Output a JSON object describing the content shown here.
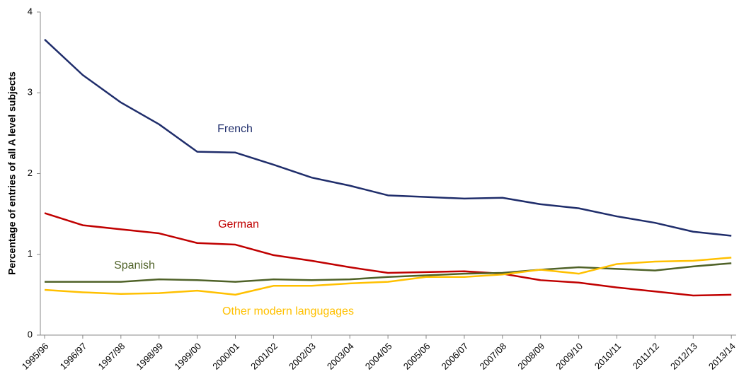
{
  "chart_data": {
    "type": "line",
    "y_label": "Percentage of entries of all A level subjects",
    "categories": [
      "1995/96",
      "1996/97",
      "1997/98",
      "1998/99",
      "1999/00",
      "2000/01",
      "2001/02",
      "2002/03",
      "2003/04",
      "2004/05",
      "2005/06",
      "2006/07",
      "2007/08",
      "2008/09",
      "2009/10",
      "2010/11",
      "2011/12",
      "2012/13",
      "2013/14"
    ],
    "series": [
      {
        "name": "French",
        "color": "#1f2d6b",
        "values": [
          3.66,
          3.22,
          2.88,
          2.61,
          2.27,
          2.26,
          2.11,
          1.95,
          1.85,
          1.73,
          1.71,
          1.69,
          1.7,
          1.62,
          1.57,
          1.47,
          1.39,
          1.28,
          1.23
        ]
      },
      {
        "name": "German",
        "color": "#c00000",
        "values": [
          1.51,
          1.36,
          1.31,
          1.26,
          1.14,
          1.12,
          0.99,
          0.92,
          0.84,
          0.77,
          0.78,
          0.79,
          0.76,
          0.68,
          0.65,
          0.59,
          0.54,
          0.49,
          0.5
        ]
      },
      {
        "name": "Spanish",
        "color": "#4f6228",
        "values": [
          0.66,
          0.66,
          0.66,
          0.69,
          0.68,
          0.66,
          0.69,
          0.68,
          0.69,
          0.72,
          0.74,
          0.76,
          0.77,
          0.81,
          0.84,
          0.82,
          0.8,
          0.85,
          0.89
        ]
      },
      {
        "name": "Other modern langugages",
        "color": "#ffc000",
        "values": [
          0.56,
          0.53,
          0.51,
          0.52,
          0.55,
          0.5,
          0.61,
          0.61,
          0.64,
          0.66,
          0.72,
          0.72,
          0.75,
          0.81,
          0.76,
          0.88,
          0.91,
          0.92,
          0.96
        ]
      }
    ],
    "ylim": [
      0,
      4
    ],
    "yticks": [
      0,
      1,
      2,
      3,
      4
    ]
  }
}
